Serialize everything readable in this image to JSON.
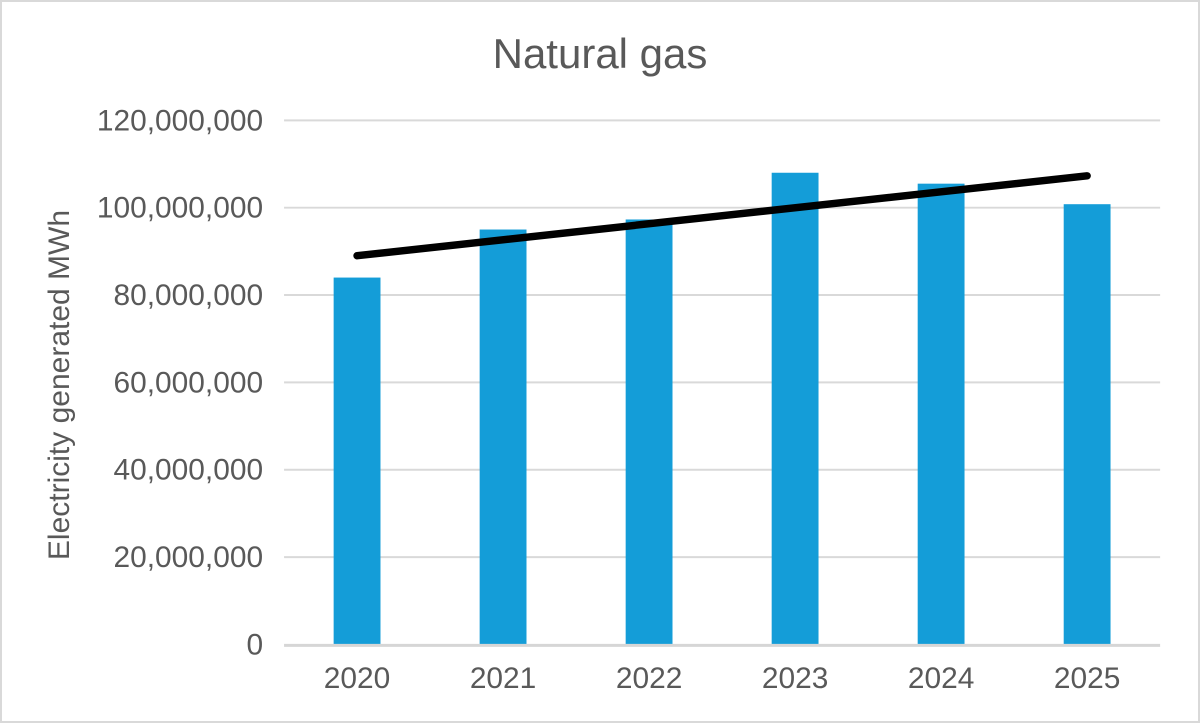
{
  "chart_data": {
    "type": "bar",
    "title": "Natural gas",
    "ylabel": "Electricity generated MWh",
    "xlabel": "",
    "categories": [
      "2020",
      "2021",
      "2022",
      "2023",
      "2024",
      "2025"
    ],
    "series": [
      {
        "name": "Electricity generated MWh",
        "values": [
          84000000,
          95000000,
          97300000,
          108000000,
          105500000,
          100800000
        ]
      }
    ],
    "ylim": [
      0,
      120000000
    ],
    "ytick_step": 20000000,
    "ytick_labels": [
      "0",
      "20,000,000",
      "40,000,000",
      "60,000,000",
      "80,000,000",
      "100,000,000",
      "120,000,000"
    ],
    "grid": true,
    "legend_position": "none",
    "colors": {
      "bar": "#149dd8",
      "trendline": "#000000",
      "gridline": "#d9d9d9",
      "axis_line": "#d6d6d6",
      "text": "#595959"
    },
    "trendline": {
      "shape": "linear",
      "start_category": "2020",
      "end_category": "2025",
      "start_value": 89000000,
      "end_value": 107300000
    }
  }
}
